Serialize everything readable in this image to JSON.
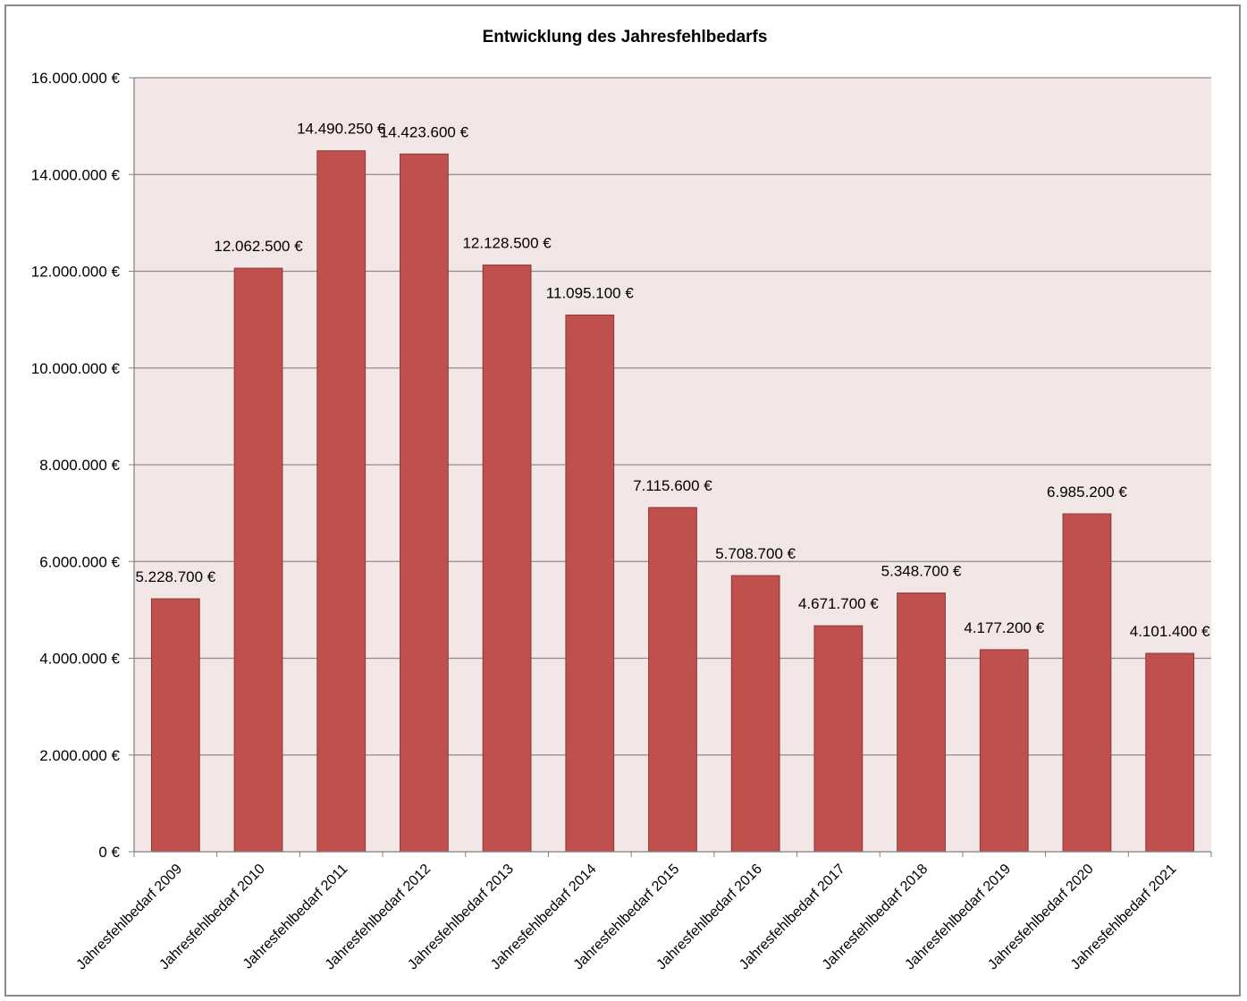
{
  "chart_data": {
    "type": "bar",
    "title": "Entwicklung des Jahresfehlbedarfs",
    "categories": [
      "Jahresfehlbedarf 2009",
      "Jahresfehlbedarf 2010",
      "Jahresfehlbedarf 2011",
      "Jahresfehlbedarf 2012",
      "Jahresfehlbedarf 2013",
      "Jahresfehlbedarf 2014",
      "Jahresfehlbedarf 2015",
      "Jahresfehlbedarf 2016",
      "Jahresfehlbedarf 2017",
      "Jahresfehlbedarf 2018",
      "Jahresfehlbedarf 2019",
      "Jahresfehlbedarf 2020",
      "Jahresfehlbedarf 2021"
    ],
    "values": [
      5228700,
      12062500,
      14490250,
      14423600,
      12128500,
      11095100,
      7115600,
      5708700,
      4671700,
      5348700,
      4177200,
      6985200,
      4101400
    ],
    "data_labels": [
      "5.228.700 €",
      "12.062.500 €",
      "14.490.250 €",
      "14.423.600 €",
      "12.128.500 €",
      "11.095.100 €",
      "7.115.600 €",
      "5.708.700 €",
      "4.671.700 €",
      "5.348.700 €",
      "4.177.200 €",
      "6.985.200 €",
      "4.101.400 €"
    ],
    "ylim": [
      0,
      16000000
    ],
    "y_ticks": [
      0,
      2000000,
      4000000,
      6000000,
      8000000,
      10000000,
      12000000,
      14000000,
      16000000
    ],
    "y_tick_labels": [
      "0 €",
      "2.000.000 €",
      "4.000.000 €",
      "6.000.000 €",
      "8.000.000 €",
      "10.000.000 €",
      "12.000.000 €",
      "14.000.000 €",
      "16.000.000 €"
    ],
    "xlabel": "",
    "ylabel": "",
    "grid": true,
    "legend": "none",
    "colors": {
      "bar_fill": "#c0504d",
      "bar_stroke": "#8c3836",
      "plot_background": "#f2e6e6",
      "gridline": "#8c8c8c"
    }
  }
}
